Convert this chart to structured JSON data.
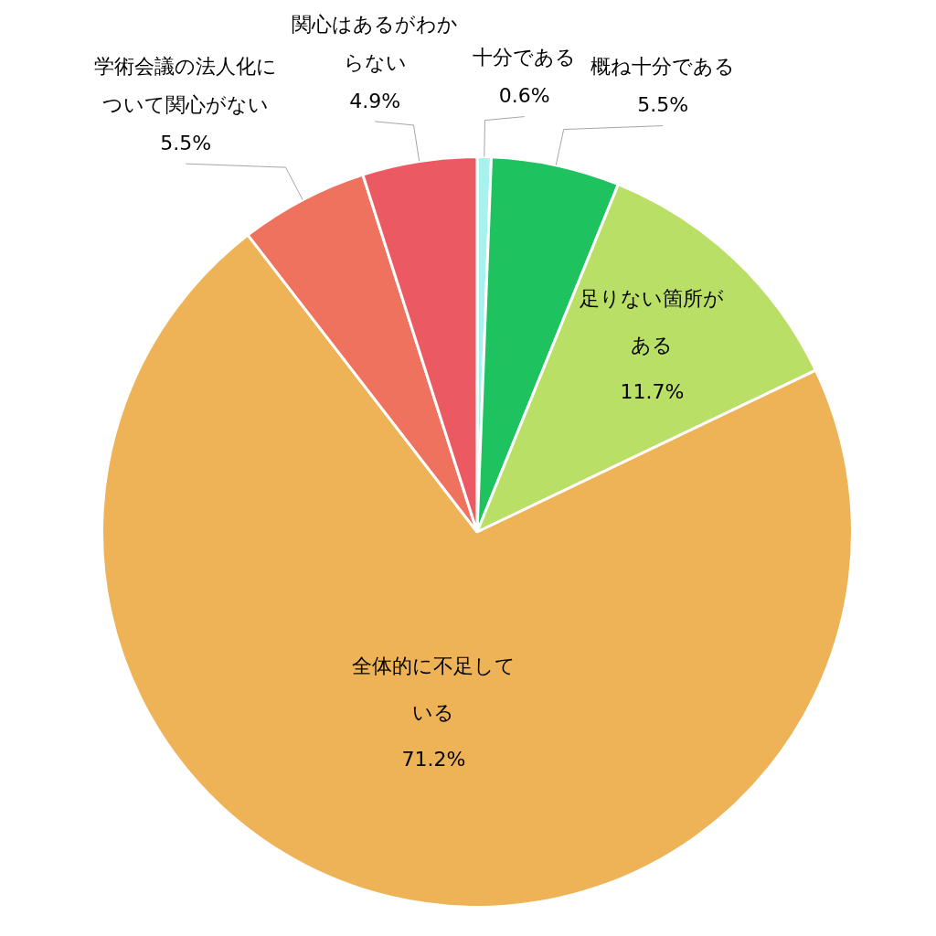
{
  "chart_data": {
    "type": "pie",
    "categories": [
      "十分である",
      "概ね十分である",
      "足りない箇所がある",
      "全体的に不足している",
      "学術会議の法人化について関心がない",
      "関心はあるがわからない"
    ],
    "values": [
      0.6,
      5.5,
      11.7,
      71.2,
      5.5,
      4.9
    ],
    "value_labels": [
      "0.6%",
      "5.5%",
      "11.7%",
      "71.2%",
      "5.5%",
      "4.9%"
    ],
    "colors": [
      "#a8f2ee",
      "#1ec25f",
      "#b9df66",
      "#efb357",
      "#ee725e",
      "#eb5a62"
    ],
    "legend": false
  }
}
